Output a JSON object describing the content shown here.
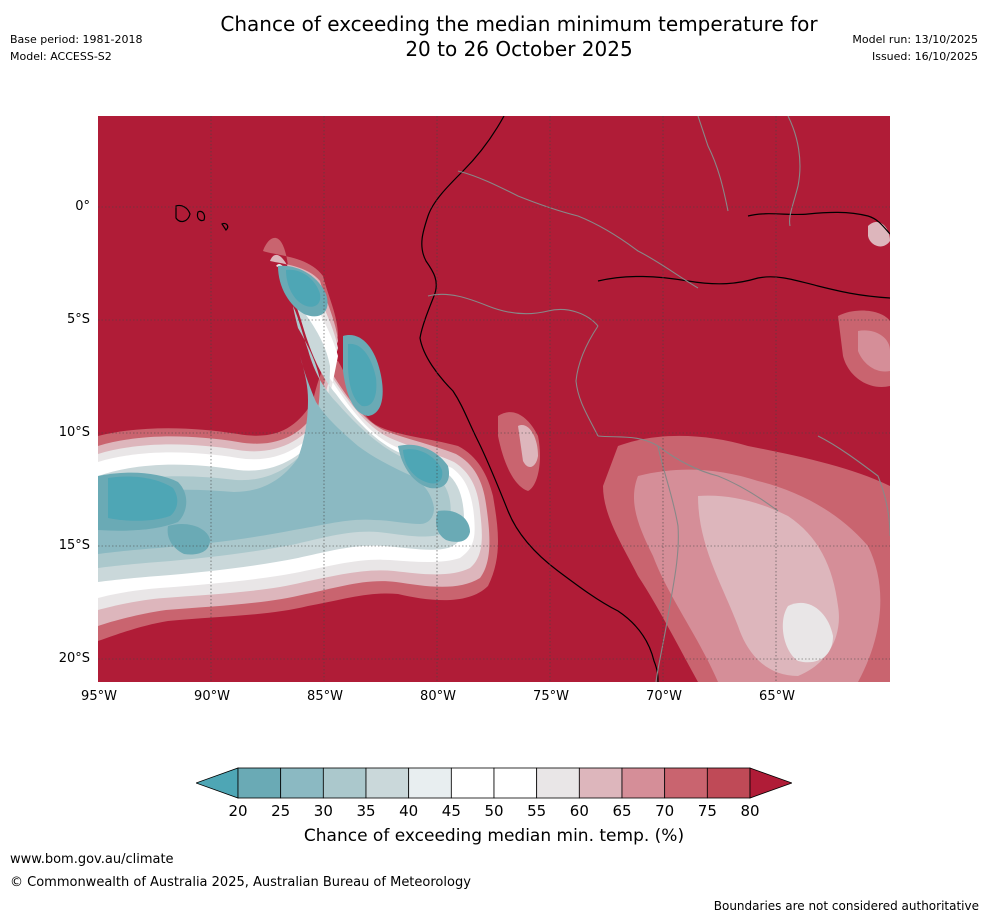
{
  "title": {
    "line1": "Chance of exceeding the median minimum temperature for",
    "line2": "20 to 26 October 2025"
  },
  "meta_left": {
    "base_period": "Base period: 1981-2018",
    "model": "Model: ACCESS-S2"
  },
  "meta_right": {
    "model_run": "Model run: 13/10/2025",
    "issued": "Issued: 16/10/2025"
  },
  "map": {
    "latitude_labels": [
      "0°",
      "5°S",
      "10°S",
      "15°S",
      "20°S"
    ],
    "longitude_labels": [
      "95°W",
      "90°W",
      "85°W",
      "80°W",
      "75°W",
      "70°W",
      "65°W"
    ]
  },
  "colorbar": {
    "labels": [
      "20",
      "25",
      "30",
      "35",
      "40",
      "45",
      "50",
      "55",
      "60",
      "65",
      "70",
      "75",
      "80"
    ],
    "colors": [
      "#4ea6b5",
      "#6aaab5",
      "#8bb9c2",
      "#abc8cc",
      "#cad8da",
      "#e8eef0",
      "#ffffff",
      "#ffffff",
      "#e9e6e7",
      "#ddb6bc",
      "#d58e98",
      "#c9646f",
      "#bf4a57",
      "#b01c37"
    ],
    "title": "Chance of exceeding median min. temp. (%)"
  },
  "footer": {
    "url": "www.bom.gov.au/climate",
    "copyright": "© Commonwealth of Australia 2025, Australian Bureau of Meteorology",
    "disclaimer": "Boundaries are not considered authoritative"
  }
}
